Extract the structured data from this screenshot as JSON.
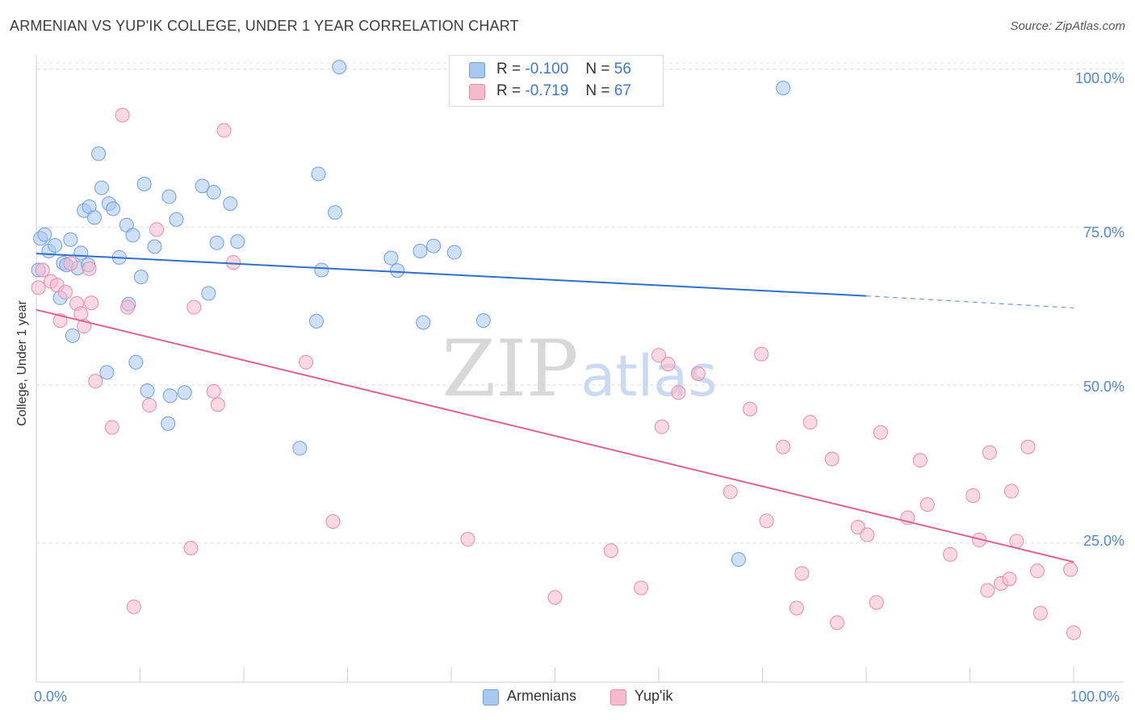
{
  "title": "ARMENIAN VS YUP'IK COLLEGE, UNDER 1 YEAR CORRELATION CHART",
  "source": "Source: ZipAtlas.com",
  "watermark": {
    "zip": "ZIP",
    "atlas": "atlas"
  },
  "legend": {
    "rows": [
      {
        "r_label": "R =",
        "r_value": "-0.100",
        "n_label": "N =",
        "n_value": "56",
        "color": "#a9c8f0",
        "border": "#6f9ee0"
      },
      {
        "r_label": "R =",
        "r_value": "-0.719",
        "n_label": "N =",
        "n_value": "67",
        "color": "#f7b9cc",
        "border": "#e98aa8"
      }
    ]
  },
  "bottom_legend": [
    {
      "label": "Armenians",
      "color": "#a9c8f0",
      "border": "#6f9ee0"
    },
    {
      "label": "Yup'ik",
      "color": "#f7b9cc",
      "border": "#e98aa8"
    }
  ],
  "chart_data": {
    "type": "scatter",
    "title": "ARMENIAN VS YUP'IK COLLEGE, UNDER 1 YEAR CORRELATION CHART",
    "xlabel": "",
    "ylabel": "College, Under 1 year",
    "xlim": [
      0,
      100
    ],
    "ylim": [
      3,
      103
    ],
    "x_tick_labels": [
      "0.0%",
      "100.0%"
    ],
    "y_tick_labels": [
      {
        "value": 25,
        "label": "25.0%"
      },
      {
        "value": 50,
        "label": "50.0%"
      },
      {
        "value": 75,
        "label": "75.0%"
      },
      {
        "value": 100,
        "label": "100.0%"
      }
    ],
    "grid": true,
    "series": [
      {
        "name": "Armenians",
        "color": "#a9c8f0",
        "border": "#6f9ee0",
        "line_color": "#2f6fcd",
        "trend": {
          "x1": 0,
          "y1": 70.8,
          "x2": 80,
          "y2": 64.1,
          "dash_to_x": 100,
          "dash_to_y": 62.2
        },
        "points": [
          [
            0.4,
            73.2
          ],
          [
            0.8,
            73.8
          ],
          [
            1.2,
            71.2
          ],
          [
            1.8,
            72.1
          ],
          [
            2.3,
            63.8
          ],
          [
            2.6,
            69.3
          ],
          [
            2.9,
            69.0
          ],
          [
            3.3,
            73.0
          ],
          [
            3.5,
            57.8
          ],
          [
            4.0,
            68.5
          ],
          [
            4.3,
            70.9
          ],
          [
            5.0,
            69.0
          ],
          [
            4.6,
            77.6
          ],
          [
            5.1,
            78.2
          ],
          [
            5.6,
            76.5
          ],
          [
            6.0,
            86.6
          ],
          [
            6.3,
            81.2
          ],
          [
            6.8,
            52.0
          ],
          [
            7.0,
            78.7
          ],
          [
            7.4,
            77.9
          ],
          [
            8.0,
            70.2
          ],
          [
            8.7,
            75.3
          ],
          [
            8.9,
            62.8
          ],
          [
            9.3,
            73.7
          ],
          [
            9.6,
            53.6
          ],
          [
            10.1,
            67.1
          ],
          [
            10.4,
            81.8
          ],
          [
            10.7,
            49.1
          ],
          [
            11.4,
            71.9
          ],
          [
            12.7,
            43.9
          ],
          [
            12.9,
            48.3
          ],
          [
            12.8,
            79.8
          ],
          [
            13.5,
            76.2
          ],
          [
            14.3,
            48.8
          ],
          [
            16.0,
            81.5
          ],
          [
            16.6,
            64.5
          ],
          [
            17.1,
            80.5
          ],
          [
            17.4,
            72.5
          ],
          [
            18.7,
            78.7
          ],
          [
            19.4,
            72.7
          ],
          [
            25.4,
            40.0
          ],
          [
            27.0,
            60.1
          ],
          [
            27.2,
            83.4
          ],
          [
            27.5,
            68.2
          ],
          [
            28.8,
            77.3
          ],
          [
            29.2,
            100.3
          ],
          [
            34.2,
            70.1
          ],
          [
            34.8,
            68.1
          ],
          [
            37.0,
            71.2
          ],
          [
            37.3,
            59.9
          ],
          [
            38.3,
            72.0
          ],
          [
            40.3,
            71.0
          ],
          [
            43.1,
            60.2
          ],
          [
            67.7,
            22.4
          ],
          [
            72.0,
            97.0
          ],
          [
            0.2,
            68.2
          ]
        ]
      },
      {
        "name": "Yup'ik",
        "color": "#f7b9cc",
        "border": "#e98aa8",
        "line_color": "#e0608d",
        "trend": {
          "x1": 0,
          "y1": 61.9,
          "x2": 100,
          "y2": 22.0
        },
        "points": [
          [
            0.2,
            65.4
          ],
          [
            0.6,
            68.2
          ],
          [
            1.4,
            66.4
          ],
          [
            2.0,
            65.8
          ],
          [
            2.3,
            60.2
          ],
          [
            2.8,
            64.7
          ],
          [
            3.3,
            69.2
          ],
          [
            3.9,
            62.9
          ],
          [
            4.3,
            61.3
          ],
          [
            4.6,
            59.3
          ],
          [
            5.1,
            68.4
          ],
          [
            5.3,
            63.0
          ],
          [
            5.7,
            50.6
          ],
          [
            7.3,
            43.3
          ],
          [
            8.3,
            92.7
          ],
          [
            8.8,
            62.3
          ],
          [
            9.4,
            14.9
          ],
          [
            10.9,
            46.8
          ],
          [
            11.6,
            74.6
          ],
          [
            14.9,
            24.2
          ],
          [
            15.2,
            62.3
          ],
          [
            17.1,
            49.0
          ],
          [
            17.5,
            46.9
          ],
          [
            18.1,
            90.3
          ],
          [
            19.0,
            69.4
          ],
          [
            26.0,
            53.6
          ],
          [
            28.6,
            28.4
          ],
          [
            41.6,
            25.6
          ],
          [
            50.0,
            16.4
          ],
          [
            55.4,
            23.8
          ],
          [
            58.3,
            17.9
          ],
          [
            60.0,
            54.7
          ],
          [
            60.3,
            43.4
          ],
          [
            60.9,
            53.3
          ],
          [
            61.9,
            48.8
          ],
          [
            63.8,
            51.8
          ],
          [
            66.9,
            33.1
          ],
          [
            68.8,
            46.2
          ],
          [
            70.4,
            28.5
          ],
          [
            69.9,
            54.9
          ],
          [
            72.0,
            40.2
          ],
          [
            73.3,
            14.7
          ],
          [
            73.8,
            20.2
          ],
          [
            74.6,
            44.1
          ],
          [
            76.7,
            38.3
          ],
          [
            77.2,
            12.4
          ],
          [
            79.2,
            27.5
          ],
          [
            80.1,
            26.3
          ],
          [
            81.0,
            15.6
          ],
          [
            81.4,
            42.5
          ],
          [
            84.0,
            29.0
          ],
          [
            85.2,
            38.1
          ],
          [
            85.9,
            31.1
          ],
          [
            88.1,
            23.2
          ],
          [
            90.3,
            32.5
          ],
          [
            90.9,
            25.5
          ],
          [
            91.7,
            17.5
          ],
          [
            91.9,
            39.3
          ],
          [
            93.0,
            18.6
          ],
          [
            93.8,
            19.3
          ],
          [
            94.0,
            33.2
          ],
          [
            94.5,
            25.3
          ],
          [
            95.6,
            40.2
          ],
          [
            96.5,
            20.6
          ],
          [
            96.8,
            13.9
          ],
          [
            99.7,
            20.8
          ],
          [
            100.0,
            10.8
          ]
        ]
      }
    ]
  }
}
